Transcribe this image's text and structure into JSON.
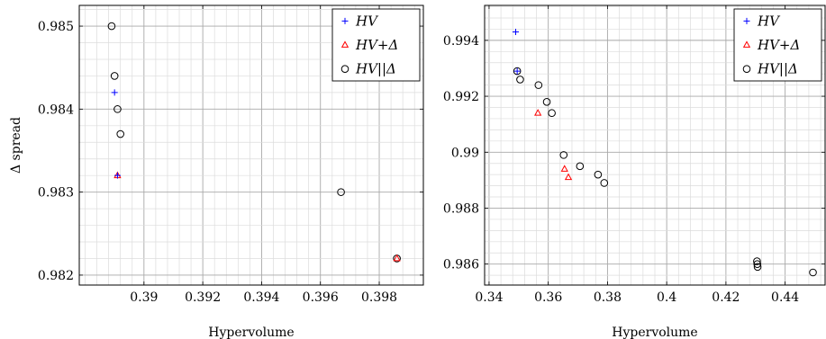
{
  "chart_data": [
    {
      "type": "scatter",
      "xlabel": "Hypervolume",
      "ylabel": "Δ spread",
      "xlim": [
        0.3878,
        0.3995
      ],
      "ylim": [
        0.98188,
        0.98525
      ],
      "xticks": [
        0.39,
        0.392,
        0.394,
        0.396,
        0.398
      ],
      "xtick_labels": [
        "0.39",
        "0.392",
        "0.394",
        "0.396",
        "0.398"
      ],
      "yticks": [
        0.982,
        0.983,
        0.984,
        0.985
      ],
      "ytick_labels": [
        "0.982",
        "0.983",
        "0.984",
        "0.985"
      ],
      "grid": true,
      "legend": "top-right",
      "series": [
        {
          "name": "HV",
          "marker": "plus",
          "color": "#0000ff",
          "points": [
            [
              0.389,
              0.9842
            ],
            [
              0.3891,
              0.9832
            ]
          ]
        },
        {
          "name": "HV+Δ",
          "marker": "triangle",
          "color": "#ff0000",
          "points": [
            [
              0.3891,
              0.9832
            ],
            [
              0.3986,
              0.9822
            ]
          ]
        },
        {
          "name": "HV||Δ",
          "marker": "circle",
          "color": "#000000",
          "points": [
            [
              0.3889,
              0.985
            ],
            [
              0.389,
              0.9844
            ],
            [
              0.3891,
              0.984
            ],
            [
              0.3892,
              0.9837
            ],
            [
              0.3967,
              0.983
            ],
            [
              0.3986,
              0.9822
            ]
          ]
        }
      ]
    },
    {
      "type": "scatter",
      "xlabel": "Hypervolume",
      "ylabel": "",
      "xlim": [
        0.3385,
        0.4535
      ],
      "ylim": [
        0.98525,
        0.99525
      ],
      "xticks": [
        0.34,
        0.36,
        0.38,
        0.4,
        0.42,
        0.44
      ],
      "xtick_labels": [
        "0.34",
        "0.36",
        "0.38",
        "0.4",
        "0.42",
        "0.44"
      ],
      "yticks": [
        0.986,
        0.988,
        0.99,
        0.992,
        0.994
      ],
      "ytick_labels": [
        "0.986",
        "0.988",
        "0.99",
        "0.992",
        "0.994"
      ],
      "grid": true,
      "legend": "top-right",
      "series": [
        {
          "name": "HV",
          "marker": "plus",
          "color": "#0000ff",
          "points": [
            [
              0.349,
              0.9943
            ],
            [
              0.3495,
              0.9929
            ]
          ]
        },
        {
          "name": "HV+Δ",
          "marker": "triangle",
          "color": "#ff0000",
          "points": [
            [
              0.3565,
              0.9914
            ],
            [
              0.3655,
              0.9894
            ],
            [
              0.3668,
              0.9891
            ]
          ]
        },
        {
          "name": "HV||Δ",
          "marker": "circle",
          "color": "#000000",
          "points": [
            [
              0.3495,
              0.9929
            ],
            [
              0.3505,
              0.9926
            ],
            [
              0.3567,
              0.9924
            ],
            [
              0.3595,
              0.9918
            ],
            [
              0.3612,
              0.9914
            ],
            [
              0.3652,
              0.9899
            ],
            [
              0.3707,
              0.9895
            ],
            [
              0.3768,
              0.9892
            ],
            [
              0.3789,
              0.9889
            ],
            [
              0.4305,
              0.9861
            ],
            [
              0.4306,
              0.986
            ],
            [
              0.4307,
              0.9859
            ],
            [
              0.4494,
              0.9857
            ]
          ]
        }
      ]
    }
  ]
}
